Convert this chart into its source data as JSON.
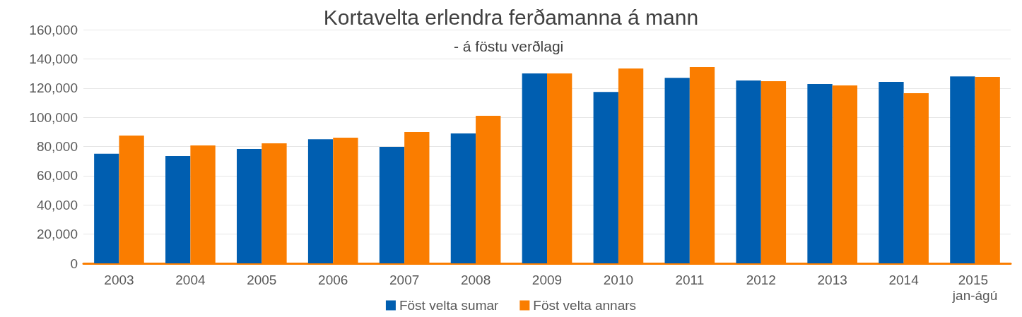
{
  "chart_data": {
    "type": "bar",
    "title": "Kortavelta erlendra ferðamanna á mann",
    "subtitle": "- á föstu verðlagi",
    "categories": [
      "2003",
      "2004",
      "2005",
      "2006",
      "2007",
      "2008",
      "2009",
      "2010",
      "2011",
      "2012",
      "2013",
      "2014",
      "2015 jan-ágú"
    ],
    "series": [
      {
        "name": "Föst velta sumar",
        "color": "#005eb0",
        "values": [
          75000,
          73500,
          78300,
          85000,
          79700,
          88900,
          130000,
          117400,
          127000,
          125200,
          122800,
          124200,
          128000
        ]
      },
      {
        "name": "Föst velta annars",
        "color": "#fa7d00",
        "values": [
          87500,
          80700,
          82200,
          86000,
          89900,
          101000,
          130000,
          133400,
          134400,
          124700,
          121800,
          116500,
          127600
        ]
      }
    ],
    "ylim": [
      0,
      160000
    ],
    "yticks": [
      0,
      {
        "value": 20000,
        "label": "20,000"
      },
      {
        "value": 40000,
        "label": "40,000"
      },
      {
        "value": 60000,
        "label": "60,000"
      },
      {
        "value": 80000,
        "label": "80,000"
      },
      {
        "value": 100000,
        "label": "100,000"
      },
      {
        "value": 120000,
        "label": "120,000"
      },
      {
        "value": 140000,
        "label": "140,000"
      },
      {
        "value": 160000,
        "label": "160,000"
      }
    ],
    "grid": "y",
    "legend": "bottom"
  }
}
